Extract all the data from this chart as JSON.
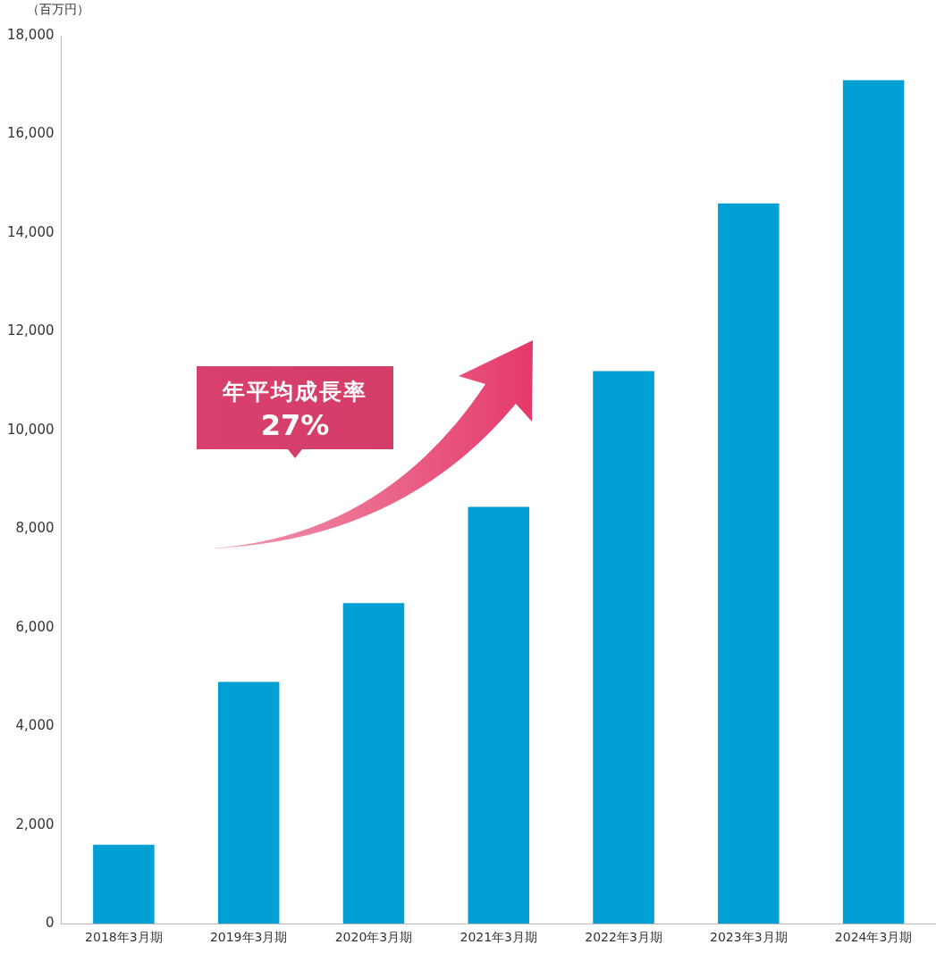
{
  "chart_data": {
    "type": "bar",
    "ylabel": "（百万円）",
    "categories": [
      "2018年3月期",
      "2019年3月期",
      "2020年3月期",
      "2021年3月期",
      "2022年3月期",
      "2023年3月期",
      "2024年3月期"
    ],
    "values": [
      1600,
      4900,
      6500,
      8450,
      11200,
      14600,
      17100
    ],
    "color": "#009fd4",
    "ylim": [
      0,
      18000
    ],
    "yticks": [
      0,
      {
        "value": 2000,
        "label": "2,000"
      },
      {
        "value": 4000,
        "label": "4,000"
      },
      {
        "value": 6000,
        "label": "6,000"
      },
      {
        "value": 8000,
        "label": "8,000"
      },
      {
        "value": 10000,
        "label": "10,000"
      },
      {
        "value": 12000,
        "label": "12,000"
      },
      {
        "value": 14000,
        "label": "14,000"
      },
      {
        "value": 16000,
        "label": "16,000"
      },
      {
        "value": 18000,
        "label": "18,000"
      }
    ],
    "grid": false,
    "legend": false,
    "annotations": [
      "年平均成長率",
      "27%"
    ]
  }
}
